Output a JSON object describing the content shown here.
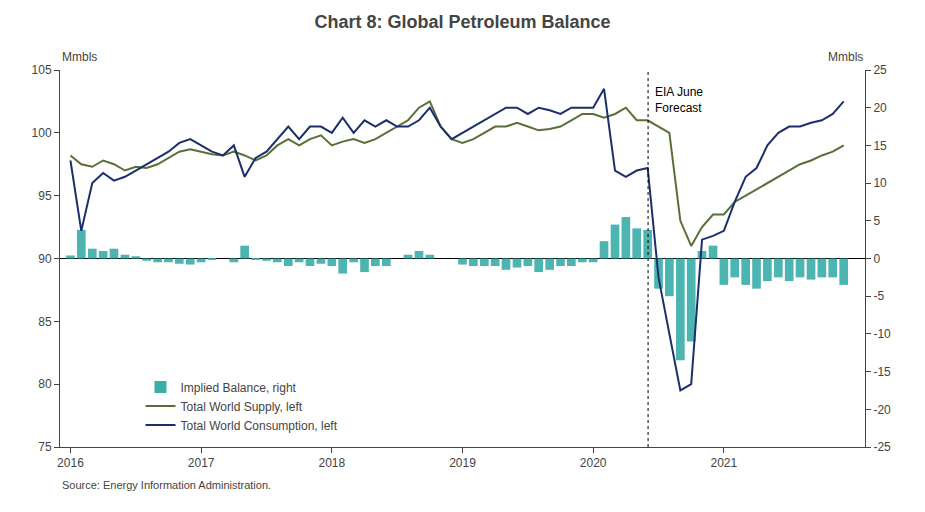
{
  "chart_data": {
    "type": "bar",
    "title": "Chart 8: Global Petroleum Balance",
    "source": "Source: Energy Information Administration.",
    "ylabel": "Mmbls",
    "y2label": "Mmbls",
    "x": [
      2016.0,
      2016.083,
      2016.167,
      2016.25,
      2016.333,
      2016.417,
      2016.5,
      2016.583,
      2016.667,
      2016.75,
      2016.833,
      2016.917,
      2017.0,
      2017.083,
      2017.167,
      2017.25,
      2017.333,
      2017.417,
      2017.5,
      2017.583,
      2017.667,
      2017.75,
      2017.833,
      2017.917,
      2018.0,
      2018.083,
      2018.167,
      2018.25,
      2018.333,
      2018.417,
      2018.5,
      2018.583,
      2018.667,
      2018.75,
      2018.833,
      2018.917,
      2019.0,
      2019.083,
      2019.167,
      2019.25,
      2019.333,
      2019.417,
      2019.5,
      2019.583,
      2019.667,
      2019.75,
      2019.833,
      2019.917,
      2020.0,
      2020.083,
      2020.167,
      2020.25,
      2020.333,
      2020.417,
      2020.5,
      2020.583,
      2020.667,
      2020.75,
      2020.833,
      2020.917,
      2021.0,
      2021.083,
      2021.167,
      2021.25,
      2021.333,
      2021.417,
      2021.5,
      2021.583,
      2021.667,
      2021.75,
      2021.833,
      2021.917
    ],
    "series": [
      {
        "name": "Implied Balance, right",
        "type": "bar",
        "axis": "y2",
        "color": "#3aada8",
        "values": [
          0.4,
          3.8,
          1.3,
          1.0,
          1.3,
          0.5,
          0.3,
          -0.3,
          -0.5,
          -0.5,
          -0.7,
          -0.8,
          -0.5,
          -0.2,
          0.0,
          -0.5,
          1.7,
          -0.2,
          -0.3,
          -0.5,
          -1.0,
          -0.5,
          -1.0,
          -0.7,
          -1.0,
          -2.0,
          -0.5,
          -1.8,
          -1.0,
          -1.0,
          0.0,
          0.5,
          1.0,
          0.5,
          0.0,
          0.0,
          -0.8,
          -1.0,
          -1.0,
          -1.0,
          -1.5,
          -1.2,
          -1.0,
          -1.8,
          -1.5,
          -1.0,
          -1.0,
          -0.5,
          -0.5,
          2.3,
          4.5,
          5.5,
          4.0,
          3.8,
          -4.0,
          -5.0,
          -13.5,
          -11.0,
          1.0,
          1.7,
          -3.5,
          -2.5,
          -3.5,
          -4.0,
          -3.0,
          -2.5,
          -3.0,
          -2.5,
          -2.8,
          -2.5,
          -2.5,
          -3.5
        ]
      },
      {
        "name": "Total World Supply, left",
        "type": "line",
        "color": "#5a6e3a",
        "values": [
          98.2,
          97.5,
          97.3,
          97.8,
          97.5,
          97.0,
          97.3,
          97.2,
          97.5,
          98.0,
          98.5,
          98.7,
          98.5,
          98.3,
          98.2,
          98.5,
          98.2,
          97.8,
          98.2,
          99.0,
          99.5,
          99.0,
          99.5,
          99.8,
          99.0,
          99.3,
          99.5,
          99.2,
          99.5,
          100.0,
          100.5,
          101.0,
          102.0,
          102.5,
          100.5,
          99.5,
          99.2,
          99.5,
          100.0,
          100.5,
          100.5,
          100.8,
          100.5,
          100.2,
          100.3,
          100.5,
          101.0,
          101.5,
          101.5,
          101.2,
          101.5,
          102.0,
          101.0,
          101.0,
          100.5,
          100.0,
          93.0,
          91.0,
          92.5,
          93.5,
          93.5,
          94.5,
          95.0,
          95.5,
          96.0,
          96.5,
          97.0,
          97.5,
          97.8,
          98.2,
          98.5,
          99.0
        ]
      },
      {
        "name": "Total World Consumption, left",
        "type": "line",
        "color": "#1b2f6b",
        "values": [
          97.8,
          92.2,
          96.0,
          96.8,
          96.2,
          96.5,
          97.0,
          97.5,
          98.0,
          98.5,
          99.2,
          99.5,
          99.0,
          98.5,
          98.2,
          99.0,
          96.5,
          98.0,
          98.5,
          99.5,
          100.5,
          99.5,
          100.5,
          100.5,
          100.0,
          101.2,
          100.0,
          101.0,
          100.5,
          101.0,
          100.5,
          100.5,
          101.0,
          102.0,
          100.5,
          99.5,
          100.0,
          100.5,
          101.0,
          101.5,
          102.0,
          102.0,
          101.5,
          102.0,
          101.8,
          101.5,
          102.0,
          102.0,
          102.0,
          103.5,
          97.0,
          96.5,
          97.0,
          97.2,
          88.5,
          84.0,
          79.5,
          80.0,
          91.5,
          91.8,
          92.2,
          94.5,
          96.5,
          97.2,
          99.0,
          100.0,
          100.5,
          100.5,
          100.8,
          101.0,
          101.5,
          102.5
        ]
      }
    ],
    "xlim": [
      2015.92,
      2022.08
    ],
    "xticks": [
      2016,
      2017,
      2018,
      2019,
      2020,
      2021
    ],
    "ylim": [
      75,
      105
    ],
    "yticks": [
      75,
      80,
      85,
      90,
      95,
      100,
      105
    ],
    "y2lim": [
      -25,
      25
    ],
    "y2ticks": [
      -25,
      -20,
      -15,
      -10,
      -5,
      0,
      5,
      10,
      15,
      20,
      25
    ],
    "hlines": [
      {
        "y": 0,
        "axis": "y2",
        "color": "black"
      }
    ],
    "forecast_line": {
      "x": 2020.42,
      "y": 104.0,
      "label": "EIA June\nForecast",
      "color": "black",
      "line_style": "dotted"
    },
    "grid": false,
    "legend": "lower left"
  }
}
